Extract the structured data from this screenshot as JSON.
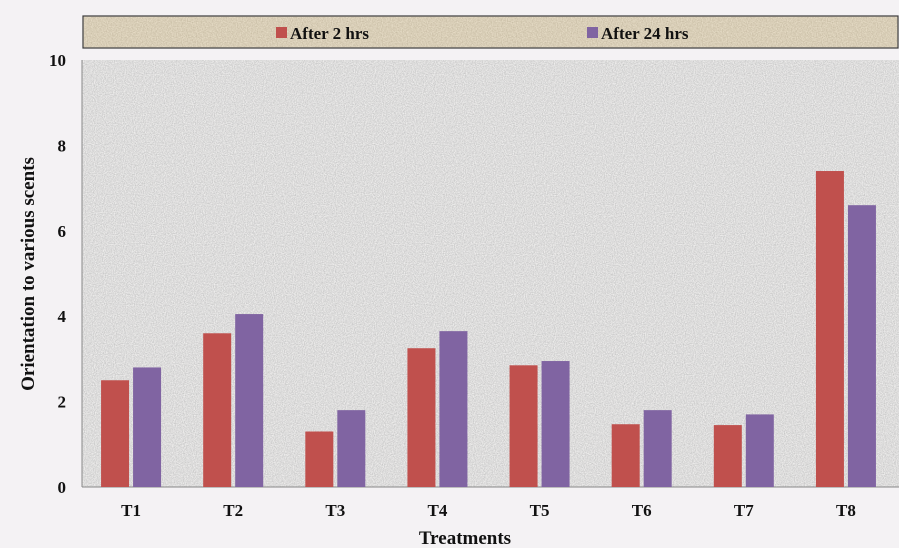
{
  "chart_data": {
    "type": "bar",
    "title": "",
    "xlabel": "Treatments",
    "ylabel": "Orientation to various scents",
    "categories": [
      "T1",
      "T2",
      "T3",
      "T4",
      "T5",
      "T6",
      "T7",
      "T8"
    ],
    "series": [
      {
        "name": "After 2 hrs",
        "color": "#c0504d",
        "values": [
          2.5,
          3.6,
          1.3,
          3.25,
          2.85,
          1.47,
          1.45,
          7.4
        ]
      },
      {
        "name": "After 24 hrs",
        "color": "#8064a2",
        "values": [
          2.8,
          4.05,
          1.8,
          3.65,
          2.95,
          1.8,
          1.7,
          6.6
        ]
      }
    ],
    "ylim": [
      0,
      10
    ],
    "yticks": [
      "0",
      "2",
      "4",
      "6",
      "8",
      "10"
    ],
    "grid": false,
    "legend_position": "top"
  }
}
